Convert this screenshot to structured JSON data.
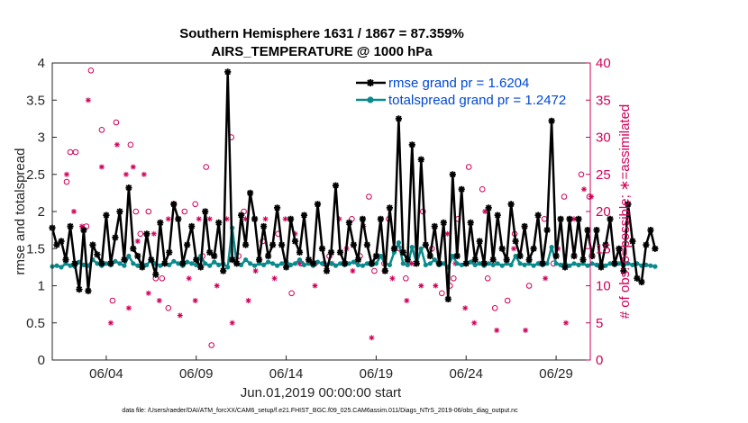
{
  "title_line1": "Southern Hemisphere 1631 / 1867 = 87.359%",
  "title_line2": "AIRS_TEMPERATURE @ 1000 hPa",
  "footnote": "data file: /Users/raeder/DAI/ATM_forcXX/CAM6_setup/f.e21.FHIST_BGC.f09_025.CAM6assim.011/Diags_NTrS_2019-06/obs_diag_output.nc",
  "colors": {
    "rmse": "#000000",
    "spread": "#0a8a8c",
    "obs": "#d0005a",
    "legend_text": "#0047d6",
    "axis": "#262626"
  },
  "chart_data": {
    "type": "line",
    "title": "Southern Hemisphere 1631 / 1867 = 87.359%",
    "subtitle": "AIRS_TEMPERATURE @ 1000 hPa",
    "xlabel": "Jun.01,2019 00:00:00 start",
    "ylabel": "rmse and totalspread",
    "y2label": "# of obs: o=possible; ∗=assimilated",
    "xlim": [
      1,
      30.9
    ],
    "ylim": [
      0,
      4
    ],
    "y2lim": [
      0,
      40
    ],
    "xticks": [
      4,
      9,
      14,
      19,
      24,
      29
    ],
    "xtick_labels": [
      "06/04",
      "06/09",
      "06/14",
      "06/19",
      "06/24",
      "06/29"
    ],
    "yticks": [
      0,
      0.5,
      1,
      1.5,
      2,
      2.5,
      3,
      3.5,
      4
    ],
    "ytick_labels": [
      "0",
      "0.5",
      "1",
      "1.5",
      "2",
      "2.5",
      "3",
      "3.5",
      "4"
    ],
    "y2ticks": [
      0,
      5,
      10,
      15,
      20,
      25,
      30,
      35,
      40
    ],
    "y2tick_labels": [
      "0",
      "5",
      "10",
      "15",
      "20",
      "25",
      "30",
      "35",
      "40"
    ],
    "legend_location": "top-right",
    "x_step": 0.25,
    "series": [
      {
        "name": "rmse grand pr = 1.6204",
        "marker": "asterisk",
        "values": [
          1.78,
          1.55,
          1.6,
          1.35,
          1.8,
          1.3,
          0.95,
          1.75,
          0.93,
          1.55,
          1.42,
          1.3,
          1.95,
          1.3,
          1.65,
          2.0,
          1.35,
          2.32,
          1.5,
          1.4,
          1.25,
          1.7,
          1.35,
          1.15,
          1.85,
          1.3,
          1.45,
          2.1,
          1.9,
          1.3,
          1.55,
          1.8,
          1.35,
          1.25,
          2.0,
          1.45,
          1.4,
          1.85,
          1.2,
          3.88,
          1.35,
          1.3,
          1.95,
          1.55,
          2.25,
          1.9,
          1.35,
          1.8,
          1.4,
          1.55,
          2.05,
          1.55,
          1.25,
          1.9,
          1.6,
          1.45,
          1.95,
          1.35,
          1.3,
          2.1,
          1.5,
          1.2,
          1.45,
          2.35,
          1.45,
          1.3,
          1.85,
          1.55,
          1.35,
          1.9,
          1.55,
          1.3,
          1.4,
          1.9,
          1.2,
          2.05,
          1.5,
          3.25,
          1.45,
          1.35,
          2.9,
          1.3,
          2.7,
          1.55,
          1.4,
          1.8,
          1.3,
          1.85,
          0.82,
          2.5,
          1.4,
          2.3,
          1.3,
          1.85,
          1.35,
          1.6,
          1.3,
          2.05,
          1.35,
          1.95,
          1.5,
          1.35,
          2.1,
          1.6,
          1.4,
          1.8,
          1.35,
          1.5,
          1.95,
          1.3,
          1.75,
          3.22,
          1.4,
          1.9,
          1.25,
          1.9,
          1.4,
          1.9,
          1.35,
          1.75,
          1.4,
          1.75,
          1.25,
          1.55,
          1.9,
          1.3,
          1.5,
          1.2,
          2.1,
          1.6,
          1.1,
          1.05,
          1.55,
          1.75,
          1.5
        ]
      },
      {
        "name": "totalspread grand pr = 1.2472",
        "marker": "dot",
        "values": [
          1.26,
          1.27,
          1.25,
          1.3,
          1.27,
          1.26,
          1.32,
          1.28,
          1.27,
          1.35,
          1.3,
          1.27,
          1.3,
          1.28,
          1.33,
          1.3,
          1.27,
          1.4,
          1.3,
          1.27,
          1.3,
          1.28,
          1.35,
          1.3,
          1.27,
          1.3,
          1.28,
          1.33,
          1.3,
          1.27,
          1.32,
          1.3,
          1.28,
          1.4,
          1.3,
          1.27,
          1.32,
          1.28,
          1.3,
          1.25,
          1.78,
          1.3,
          1.28,
          1.35,
          1.3,
          1.27,
          1.3,
          1.28,
          1.32,
          1.3,
          1.27,
          1.3,
          1.33,
          1.28,
          1.3,
          1.35,
          1.28,
          1.3,
          1.27,
          1.32,
          1.3,
          1.28,
          1.3,
          1.27,
          1.3,
          1.28,
          1.3,
          1.32,
          1.28,
          1.27,
          1.3,
          1.28,
          1.3,
          1.4,
          1.3,
          1.28,
          1.45,
          1.58,
          1.3,
          1.28,
          1.52,
          1.3,
          1.5,
          1.28,
          1.3,
          1.35,
          1.28,
          1.3,
          1.25,
          1.4,
          1.3,
          1.28,
          1.3,
          1.32,
          1.28,
          1.3,
          1.27,
          1.3,
          1.28,
          1.3,
          1.27,
          1.3,
          1.28,
          1.4,
          1.3,
          1.28,
          1.3,
          1.27,
          1.3,
          1.28,
          1.3,
          1.52,
          1.3,
          1.28,
          1.3,
          1.27,
          1.3,
          1.28,
          1.3,
          1.27,
          1.3,
          1.28,
          1.3,
          1.27,
          1.3,
          1.28,
          1.3,
          1.27,
          1.3,
          1.28,
          1.3,
          1.27,
          1.28,
          1.27,
          1.26
        ]
      }
    ],
    "obs_possible": [
      [
        1.8,
        24
      ],
      [
        2.0,
        28
      ],
      [
        2.3,
        28
      ],
      [
        2.9,
        18
      ],
      [
        3.15,
        39
      ],
      [
        3.75,
        31
      ],
      [
        4.35,
        8
      ],
      [
        4.55,
        32
      ],
      [
        5.35,
        29
      ],
      [
        5.65,
        20
      ],
      [
        5.9,
        17
      ],
      [
        6.35,
        20
      ],
      [
        6.75,
        11
      ],
      [
        7.1,
        11
      ],
      [
        7.45,
        7
      ],
      [
        7.75,
        21
      ],
      [
        8.35,
        20
      ],
      [
        8.95,
        21
      ],
      [
        9.35,
        14
      ],
      [
        9.55,
        26
      ],
      [
        9.85,
        2
      ],
      [
        10.95,
        30
      ],
      [
        11.35,
        14
      ],
      [
        11.65,
        20
      ],
      [
        12.7,
        16
      ],
      [
        13.55,
        17
      ],
      [
        14.3,
        9
      ],
      [
        14.85,
        13
      ],
      [
        15.6,
        13
      ],
      [
        16.1,
        13
      ],
      [
        16.4,
        14
      ],
      [
        17.3,
        13
      ],
      [
        17.65,
        19
      ],
      [
        18.1,
        14
      ],
      [
        18.6,
        22
      ],
      [
        18.9,
        12
      ],
      [
        19.45,
        13
      ],
      [
        19.7,
        19
      ],
      [
        20.3,
        15
      ],
      [
        20.65,
        11
      ],
      [
        21.15,
        13
      ],
      [
        21.6,
        20
      ],
      [
        22.1,
        15
      ],
      [
        22.65,
        9
      ],
      [
        23.1,
        10
      ],
      [
        23.3,
        11
      ],
      [
        23.55,
        19
      ],
      [
        24.15,
        26
      ],
      [
        24.9,
        23
      ],
      [
        25.2,
        11
      ],
      [
        25.6,
        7
      ],
      [
        26.3,
        8
      ],
      [
        26.7,
        17
      ],
      [
        27.5,
        10
      ],
      [
        28.35,
        19
      ],
      [
        28.85,
        13
      ],
      [
        29.45,
        22
      ],
      [
        30.4,
        25
      ],
      [
        30.85,
        22
      ]
    ],
    "obs_assimilated": [
      [
        1.8,
        25
      ],
      [
        2.2,
        20
      ],
      [
        2.65,
        18
      ],
      [
        3.0,
        35
      ],
      [
        3.75,
        26
      ],
      [
        4.25,
        5
      ],
      [
        4.6,
        29
      ],
      [
        5.1,
        25
      ],
      [
        5.25,
        7
      ],
      [
        5.5,
        26
      ],
      [
        5.75,
        16
      ],
      [
        6.1,
        25
      ],
      [
        6.35,
        9
      ],
      [
        6.65,
        17
      ],
      [
        6.95,
        8
      ],
      [
        7.45,
        19
      ],
      [
        8.1,
        6
      ],
      [
        8.6,
        11
      ],
      [
        8.95,
        8
      ],
      [
        9.15,
        19
      ],
      [
        9.75,
        19
      ],
      [
        10.15,
        10
      ],
      [
        10.7,
        19
      ],
      [
        11.0,
        5
      ],
      [
        11.75,
        19
      ],
      [
        11.9,
        8
      ],
      [
        12.3,
        12
      ],
      [
        12.85,
        19
      ],
      [
        13.35,
        11
      ],
      [
        13.95,
        19
      ],
      [
        14.5,
        17
      ],
      [
        14.75,
        13
      ],
      [
        15.45,
        13
      ],
      [
        15.6,
        10
      ],
      [
        16.55,
        13
      ],
      [
        16.95,
        19
      ],
      [
        17.35,
        15
      ],
      [
        17.7,
        12
      ],
      [
        18.3,
        18
      ],
      [
        18.75,
        3
      ],
      [
        19.05,
        14
      ],
      [
        19.45,
        12
      ],
      [
        19.9,
        11
      ],
      [
        20.7,
        8
      ],
      [
        20.95,
        13
      ],
      [
        21.5,
        10
      ],
      [
        22.3,
        10
      ],
      [
        22.95,
        17
      ],
      [
        23.4,
        13
      ],
      [
        23.95,
        7
      ],
      [
        24.45,
        5
      ],
      [
        25.05,
        20
      ],
      [
        25.7,
        4
      ],
      [
        26.65,
        15
      ],
      [
        27.3,
        4
      ],
      [
        28.05,
        13
      ],
      [
        28.4,
        11
      ],
      [
        29.1,
        15
      ],
      [
        29.55,
        5
      ],
      [
        30.0,
        19
      ],
      [
        30.55,
        23
      ],
      [
        30.95,
        22
      ]
    ]
  }
}
